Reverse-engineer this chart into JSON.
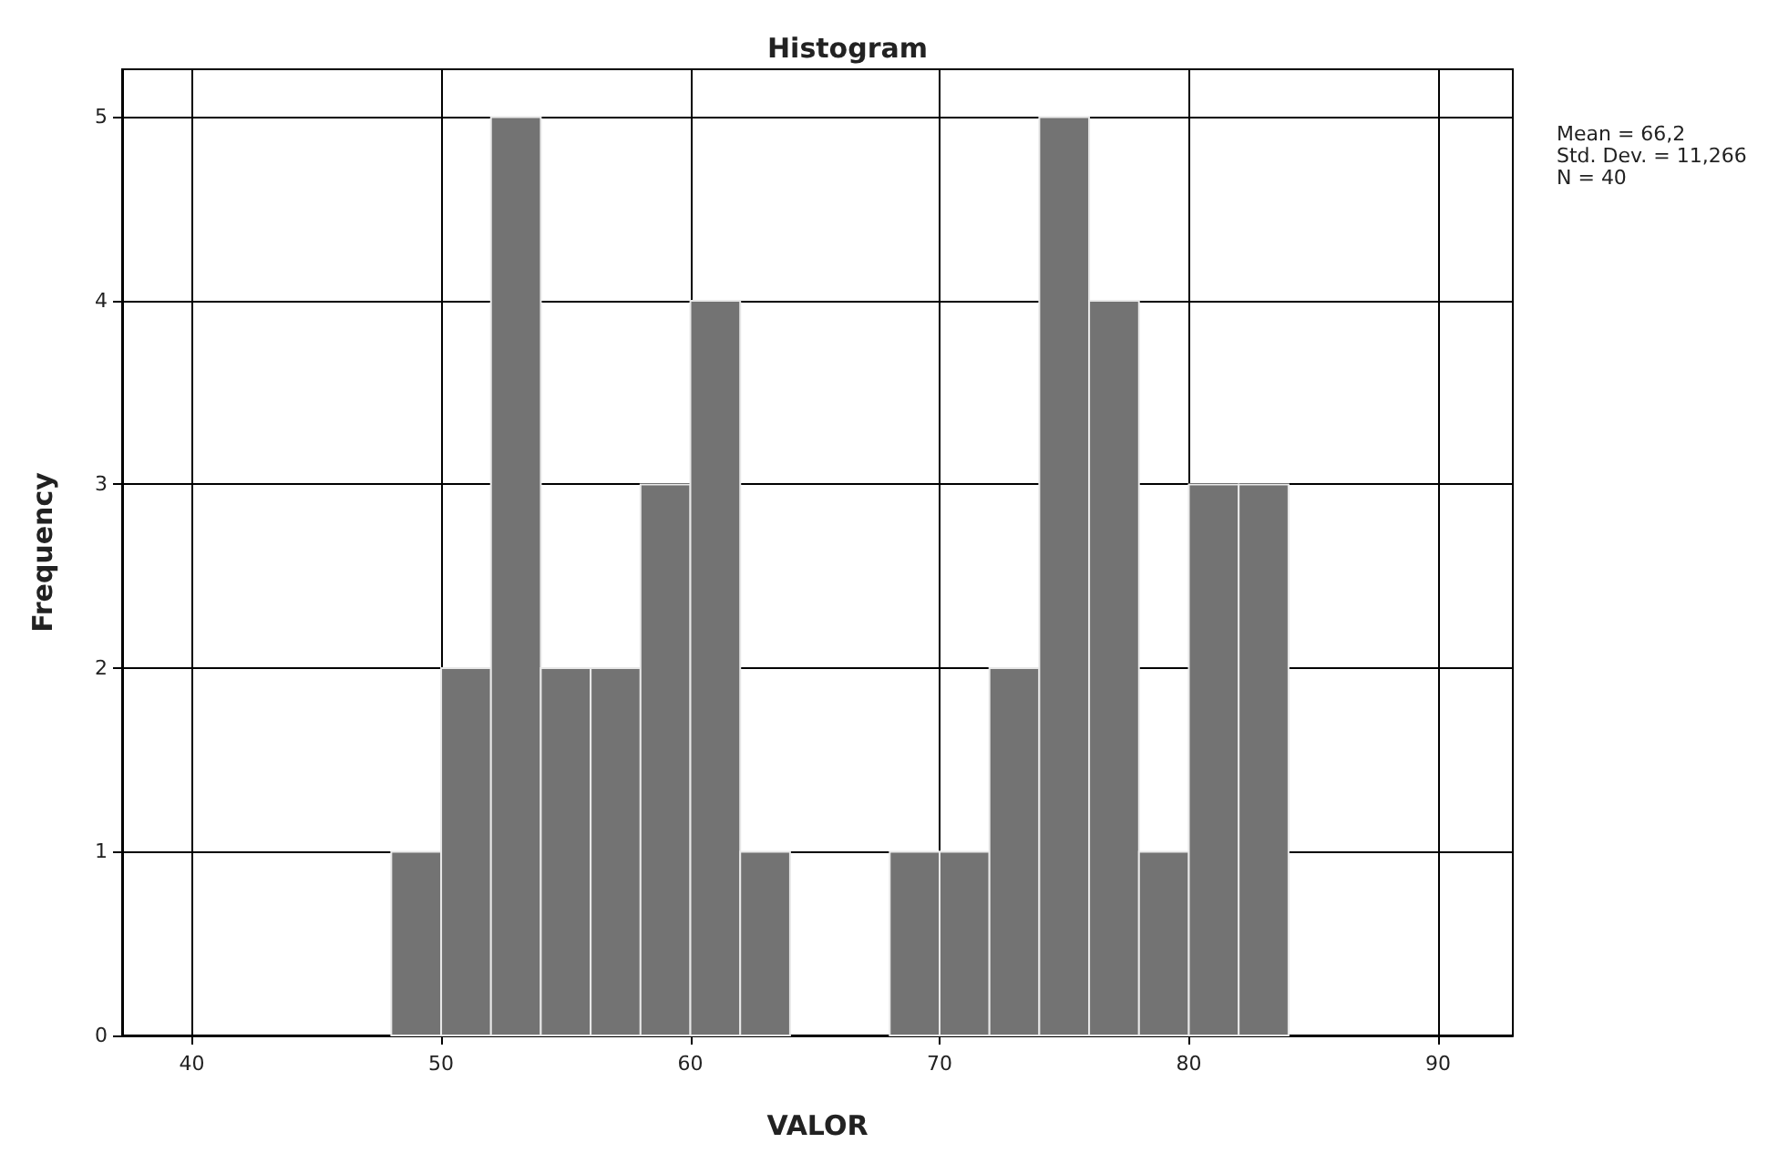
{
  "chart_data": {
    "type": "histogram",
    "title": "Histogram",
    "xlabel": "VALOR",
    "ylabel": "Frequency",
    "bins": [
      48,
      50,
      52,
      54,
      56,
      58,
      60,
      62,
      64,
      66,
      68,
      70,
      72,
      74,
      76,
      78,
      80,
      82,
      84
    ],
    "values": [
      1,
      2,
      5,
      2,
      2,
      3,
      4,
      1,
      0,
      0,
      1,
      1,
      2,
      5,
      4,
      1,
      3,
      3
    ],
    "color": "#737373",
    "xlim": [
      37.2,
      93
    ],
    "xticks": [
      40,
      50,
      60,
      70,
      80,
      90
    ],
    "ylim": [
      0,
      5.26
    ],
    "yticks": [
      0,
      1,
      2,
      3,
      4,
      5
    ],
    "grid": true,
    "annotations": [
      "Mean = 66,2",
      "Std. Dev. = 11,266",
      "N = 40"
    ]
  }
}
